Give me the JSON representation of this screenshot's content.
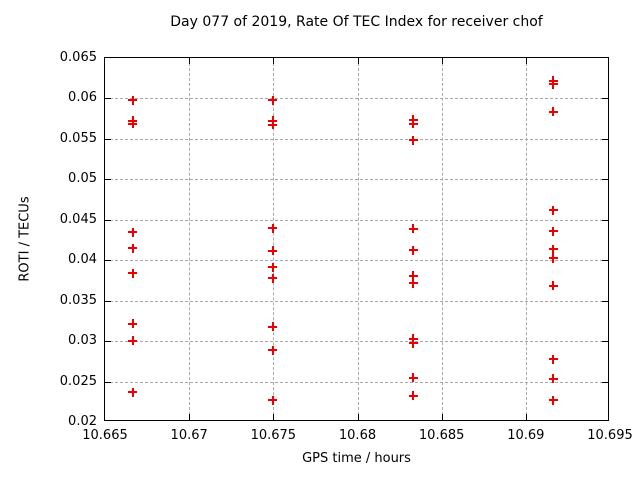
{
  "colors": {
    "marker": "#ee0000",
    "grid": "#a8a8a8",
    "axis": "#000000",
    "background": "#ffffff"
  },
  "chart_data": {
    "type": "scatter",
    "title": "Day 077 of 2019, Rate Of TEC Index for receiver chof",
    "xlabel": "GPS time / hours",
    "ylabel": "ROTI / TECUs",
    "xlim": [
      10.665,
      10.695
    ],
    "ylim": [
      0.02,
      0.065
    ],
    "grid": true,
    "legend": "none",
    "marker": "plus-icon",
    "xticks": [
      {
        "v": 10.665,
        "label": "10.665"
      },
      {
        "v": 10.67,
        "label": "10.67"
      },
      {
        "v": 10.675,
        "label": "10.675"
      },
      {
        "v": 10.68,
        "label": "10.68"
      },
      {
        "v": 10.685,
        "label": "10.685"
      },
      {
        "v": 10.69,
        "label": "10.69"
      },
      {
        "v": 10.695,
        "label": "10.695"
      }
    ],
    "yticks": [
      {
        "v": 0.02,
        "label": "0.02"
      },
      {
        "v": 0.025,
        "label": "0.025"
      },
      {
        "v": 0.03,
        "label": "0.03"
      },
      {
        "v": 0.035,
        "label": "0.035"
      },
      {
        "v": 0.04,
        "label": "0.04"
      },
      {
        "v": 0.045,
        "label": "0.045"
      },
      {
        "v": 0.05,
        "label": "0.05"
      },
      {
        "v": 0.055,
        "label": "0.055"
      },
      {
        "v": 0.06,
        "label": "0.06"
      },
      {
        "v": 0.065,
        "label": "0.065"
      }
    ],
    "series": [
      {
        "name": "ROTI",
        "points": [
          [
            10.66667,
            0.0597
          ],
          [
            10.66667,
            0.0572
          ],
          [
            10.66667,
            0.0568
          ],
          [
            10.66667,
            0.0434
          ],
          [
            10.66667,
            0.0414
          ],
          [
            10.66667,
            0.0383
          ],
          [
            10.66667,
            0.0321
          ],
          [
            10.66667,
            0.03
          ],
          [
            10.66667,
            0.0236
          ],
          [
            10.675,
            0.0597
          ],
          [
            10.675,
            0.0572
          ],
          [
            10.675,
            0.0567
          ],
          [
            10.675,
            0.0439
          ],
          [
            10.675,
            0.0411
          ],
          [
            10.675,
            0.0391
          ],
          [
            10.675,
            0.0377
          ],
          [
            10.675,
            0.0317
          ],
          [
            10.675,
            0.0288
          ],
          [
            10.675,
            0.0226
          ],
          [
            10.68333,
            0.0573
          ],
          [
            10.68333,
            0.0568
          ],
          [
            10.68333,
            0.0548
          ],
          [
            10.68333,
            0.0438
          ],
          [
            10.68333,
            0.0412
          ],
          [
            10.68333,
            0.038
          ],
          [
            10.68333,
            0.0371
          ],
          [
            10.68333,
            0.0302
          ],
          [
            10.68333,
            0.0297
          ],
          [
            10.68333,
            0.0254
          ],
          [
            10.68333,
            0.0232
          ],
          [
            10.69167,
            0.0621
          ],
          [
            10.69167,
            0.0617
          ],
          [
            10.69167,
            0.0583
          ],
          [
            10.69167,
            0.0461
          ],
          [
            10.69167,
            0.0435
          ],
          [
            10.69167,
            0.0413
          ],
          [
            10.69167,
            0.0402
          ],
          [
            10.69167,
            0.0368
          ],
          [
            10.69167,
            0.0277
          ],
          [
            10.69167,
            0.0253
          ],
          [
            10.69167,
            0.0226
          ]
        ]
      }
    ]
  }
}
